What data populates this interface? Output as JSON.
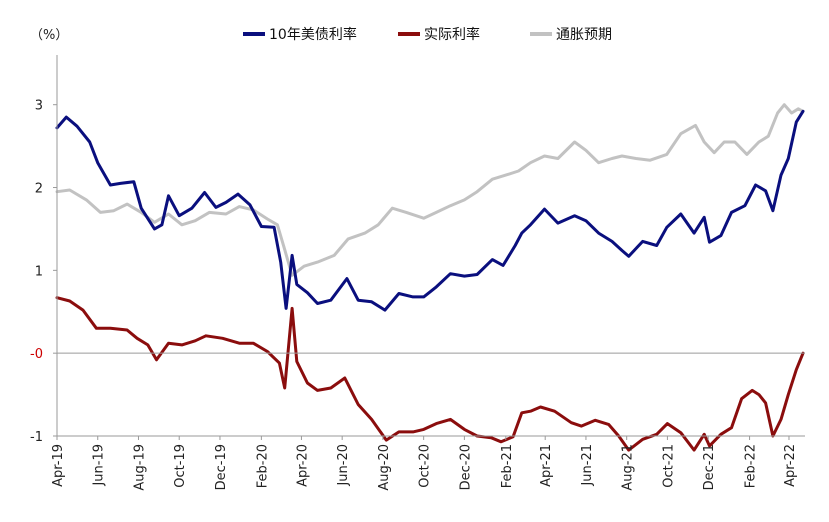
{
  "chart_data": {
    "type": "line",
    "ylabel": "（%）",
    "ylim": [
      -1,
      3.6
    ],
    "x_range": [
      "2019-04",
      "2022-04"
    ],
    "y_ticks": [
      {
        "value": 3,
        "label": "3",
        "color": "#222222"
      },
      {
        "value": 2,
        "label": "2",
        "color": "#222222"
      },
      {
        "value": 1,
        "label": "1",
        "color": "#222222"
      },
      {
        "value": 0,
        "label": "-0",
        "color": "#cc0000"
      },
      {
        "value": -1,
        "label": "-1",
        "color": "#222222"
      }
    ],
    "x_ticks": [
      "2019-04",
      "2019-06",
      "2019-08",
      "2019-10",
      "2019-12",
      "2020-02",
      "2020-04",
      "2020-06",
      "2020-08",
      "2020-10",
      "2020-12",
      "2021-02",
      "2021-04",
      "2021-06",
      "2021-08",
      "2021-10",
      "2021-12",
      "2022-02",
      "2022-04"
    ],
    "x_tick_labels": [
      "Apr-19",
      "Jun-19",
      "Aug-19",
      "Oct-19",
      "Dec-19",
      "Feb-20",
      "Apr-20",
      "Jun-20",
      "Aug-20",
      "Oct-20",
      "Dec-20",
      "Feb-21",
      "Apr-21",
      "Jun-21",
      "Aug-21",
      "Oct-21",
      "Dec-21",
      "Feb-22",
      "Apr-22"
    ],
    "legend_placement": "top",
    "series": [
      {
        "name": "10年美债利率",
        "color": "#0a0f7e",
        "points": [
          [
            "2019-04-01",
            2.72
          ],
          [
            "2019-04-15",
            2.85
          ],
          [
            "2019-05-01",
            2.74
          ],
          [
            "2019-05-20",
            2.55
          ],
          [
            "2019-06-01",
            2.3
          ],
          [
            "2019-06-20",
            2.03
          ],
          [
            "2019-07-05",
            2.05
          ],
          [
            "2019-07-25",
            2.07
          ],
          [
            "2019-08-05",
            1.75
          ],
          [
            "2019-08-25",
            1.5
          ],
          [
            "2019-09-05",
            1.55
          ],
          [
            "2019-09-15",
            1.9
          ],
          [
            "2019-10-01",
            1.66
          ],
          [
            "2019-10-20",
            1.75
          ],
          [
            "2019-11-08",
            1.94
          ],
          [
            "2019-11-25",
            1.76
          ],
          [
            "2019-12-10",
            1.82
          ],
          [
            "2019-12-28",
            1.92
          ],
          [
            "2020-01-15",
            1.79
          ],
          [
            "2020-02-01",
            1.53
          ],
          [
            "2020-02-20",
            1.52
          ],
          [
            "2020-03-01",
            1.1
          ],
          [
            "2020-03-09",
            0.54
          ],
          [
            "2020-03-18",
            1.18
          ],
          [
            "2020-03-25",
            0.83
          ],
          [
            "2020-04-10",
            0.73
          ],
          [
            "2020-04-25",
            0.6
          ],
          [
            "2020-05-15",
            0.64
          ],
          [
            "2020-06-08",
            0.9
          ],
          [
            "2020-06-25",
            0.64
          ],
          [
            "2020-07-15",
            0.62
          ],
          [
            "2020-08-04",
            0.52
          ],
          [
            "2020-08-25",
            0.72
          ],
          [
            "2020-09-15",
            0.68
          ],
          [
            "2020-10-01",
            0.68
          ],
          [
            "2020-10-20",
            0.8
          ],
          [
            "2020-11-10",
            0.96
          ],
          [
            "2020-12-01",
            0.93
          ],
          [
            "2020-12-20",
            0.95
          ],
          [
            "2021-01-12",
            1.13
          ],
          [
            "2021-01-28",
            1.06
          ],
          [
            "2021-02-15",
            1.3
          ],
          [
            "2021-02-25",
            1.45
          ],
          [
            "2021-03-10",
            1.55
          ],
          [
            "2021-03-31",
            1.74
          ],
          [
            "2021-04-20",
            1.57
          ],
          [
            "2021-05-15",
            1.66
          ],
          [
            "2021-06-01",
            1.6
          ],
          [
            "2021-06-20",
            1.45
          ],
          [
            "2021-07-10",
            1.35
          ],
          [
            "2021-07-25",
            1.24
          ],
          [
            "2021-08-04",
            1.17
          ],
          [
            "2021-08-25",
            1.35
          ],
          [
            "2021-09-15",
            1.3
          ],
          [
            "2021-09-30",
            1.52
          ],
          [
            "2021-10-21",
            1.68
          ],
          [
            "2021-11-10",
            1.45
          ],
          [
            "2021-11-25",
            1.64
          ],
          [
            "2021-12-03",
            1.34
          ],
          [
            "2021-12-20",
            1.42
          ],
          [
            "2022-01-05",
            1.7
          ],
          [
            "2022-01-25",
            1.78
          ],
          [
            "2022-02-10",
            2.03
          ],
          [
            "2022-02-25",
            1.96
          ],
          [
            "2022-03-08",
            1.72
          ],
          [
            "2022-03-20",
            2.15
          ],
          [
            "2022-03-31",
            2.35
          ],
          [
            "2022-04-12",
            2.79
          ],
          [
            "2022-04-22",
            2.92
          ]
        ]
      },
      {
        "name": "实际利率",
        "color": "#8b0d0d",
        "points": [
          [
            "2019-04-01",
            0.67
          ],
          [
            "2019-04-20",
            0.63
          ],
          [
            "2019-05-10",
            0.52
          ],
          [
            "2019-05-30",
            0.3
          ],
          [
            "2019-06-20",
            0.3
          ],
          [
            "2019-07-15",
            0.28
          ],
          [
            "2019-07-30",
            0.18
          ],
          [
            "2019-08-15",
            0.1
          ],
          [
            "2019-08-28",
            -0.08
          ],
          [
            "2019-09-15",
            0.12
          ],
          [
            "2019-10-05",
            0.1
          ],
          [
            "2019-10-25",
            0.15
          ],
          [
            "2019-11-10",
            0.21
          ],
          [
            "2019-12-05",
            0.18
          ],
          [
            "2019-12-30",
            0.12
          ],
          [
            "2020-01-20",
            0.12
          ],
          [
            "2020-02-10",
            0.02
          ],
          [
            "2020-02-28",
            -0.12
          ],
          [
            "2020-03-07",
            -0.42
          ],
          [
            "2020-03-18",
            0.54
          ],
          [
            "2020-03-25",
            -0.1
          ],
          [
            "2020-04-10",
            -0.36
          ],
          [
            "2020-04-25",
            -0.45
          ],
          [
            "2020-05-15",
            -0.42
          ],
          [
            "2020-06-05",
            -0.3
          ],
          [
            "2020-06-25",
            -0.62
          ],
          [
            "2020-07-15",
            -0.8
          ],
          [
            "2020-08-06",
            -1.05
          ],
          [
            "2020-08-25",
            -0.95
          ],
          [
            "2020-09-15",
            -0.95
          ],
          [
            "2020-10-01",
            -0.92
          ],
          [
            "2020-10-20",
            -0.85
          ],
          [
            "2020-11-10",
            -0.8
          ],
          [
            "2020-12-01",
            -0.92
          ],
          [
            "2020-12-20",
            -1.0
          ],
          [
            "2021-01-10",
            -1.02
          ],
          [
            "2021-01-25",
            -1.07
          ],
          [
            "2021-02-12",
            -1.01
          ],
          [
            "2021-02-25",
            -0.72
          ],
          [
            "2021-03-10",
            -0.7
          ],
          [
            "2021-03-25",
            -0.65
          ],
          [
            "2021-04-15",
            -0.7
          ],
          [
            "2021-05-10",
            -0.84
          ],
          [
            "2021-05-25",
            -0.88
          ],
          [
            "2021-06-15",
            -0.81
          ],
          [
            "2021-07-05",
            -0.86
          ],
          [
            "2021-07-20",
            -1.0
          ],
          [
            "2021-08-04",
            -1.17
          ],
          [
            "2021-08-25",
            -1.04
          ],
          [
            "2021-09-15",
            -0.98
          ],
          [
            "2021-10-01",
            -0.85
          ],
          [
            "2021-10-21",
            -0.96
          ],
          [
            "2021-11-10",
            -1.17
          ],
          [
            "2021-11-25",
            -0.98
          ],
          [
            "2021-12-03",
            -1.12
          ],
          [
            "2021-12-20",
            -0.98
          ],
          [
            "2022-01-05",
            -0.9
          ],
          [
            "2022-01-20",
            -0.55
          ],
          [
            "2022-02-05",
            -0.45
          ],
          [
            "2022-02-15",
            -0.5
          ],
          [
            "2022-02-25",
            -0.6
          ],
          [
            "2022-03-08",
            -1.0
          ],
          [
            "2022-03-20",
            -0.8
          ],
          [
            "2022-03-31",
            -0.5
          ],
          [
            "2022-04-12",
            -0.2
          ],
          [
            "2022-04-22",
            0.0
          ]
        ]
      },
      {
        "name": "通胀预期",
        "color": "#c2c2c2",
        "points": [
          [
            "2019-04-01",
            1.95
          ],
          [
            "2019-04-20",
            1.97
          ],
          [
            "2019-05-15",
            1.85
          ],
          [
            "2019-06-05",
            1.7
          ],
          [
            "2019-06-25",
            1.72
          ],
          [
            "2019-07-15",
            1.8
          ],
          [
            "2019-08-05",
            1.7
          ],
          [
            "2019-08-25",
            1.58
          ],
          [
            "2019-09-15",
            1.68
          ],
          [
            "2019-10-05",
            1.55
          ],
          [
            "2019-10-25",
            1.6
          ],
          [
            "2019-11-15",
            1.7
          ],
          [
            "2019-12-10",
            1.68
          ],
          [
            "2019-12-30",
            1.77
          ],
          [
            "2020-01-20",
            1.73
          ],
          [
            "2020-02-10",
            1.62
          ],
          [
            "2020-02-25",
            1.55
          ],
          [
            "2020-03-07",
            1.25
          ],
          [
            "2020-03-18",
            0.94
          ],
          [
            "2020-04-05",
            1.05
          ],
          [
            "2020-04-25",
            1.1
          ],
          [
            "2020-05-20",
            1.18
          ],
          [
            "2020-06-10",
            1.38
          ],
          [
            "2020-07-05",
            1.45
          ],
          [
            "2020-07-25",
            1.55
          ],
          [
            "2020-08-15",
            1.75
          ],
          [
            "2020-09-05",
            1.7
          ],
          [
            "2020-10-01",
            1.63
          ],
          [
            "2020-10-20",
            1.7
          ],
          [
            "2020-11-10",
            1.78
          ],
          [
            "2020-12-01",
            1.85
          ],
          [
            "2020-12-20",
            1.95
          ],
          [
            "2021-01-12",
            2.1
          ],
          [
            "2021-02-01",
            2.15
          ],
          [
            "2021-02-20",
            2.2
          ],
          [
            "2021-03-10",
            2.3
          ],
          [
            "2021-03-31",
            2.38
          ],
          [
            "2021-04-20",
            2.35
          ],
          [
            "2021-05-15",
            2.55
          ],
          [
            "2021-06-01",
            2.45
          ],
          [
            "2021-06-20",
            2.3
          ],
          [
            "2021-07-10",
            2.35
          ],
          [
            "2021-07-25",
            2.38
          ],
          [
            "2021-08-15",
            2.35
          ],
          [
            "2021-09-05",
            2.33
          ],
          [
            "2021-09-30",
            2.4
          ],
          [
            "2021-10-21",
            2.65
          ],
          [
            "2021-11-12",
            2.75
          ],
          [
            "2021-11-25",
            2.55
          ],
          [
            "2021-12-10",
            2.42
          ],
          [
            "2021-12-25",
            2.55
          ],
          [
            "2022-01-10",
            2.55
          ],
          [
            "2022-01-28",
            2.4
          ],
          [
            "2022-02-15",
            2.55
          ],
          [
            "2022-03-01",
            2.62
          ],
          [
            "2022-03-15",
            2.9
          ],
          [
            "2022-03-25",
            3.0
          ],
          [
            "2022-04-05",
            2.9
          ],
          [
            "2022-04-15",
            2.95
          ],
          [
            "2022-04-22",
            2.92
          ]
        ]
      }
    ]
  }
}
